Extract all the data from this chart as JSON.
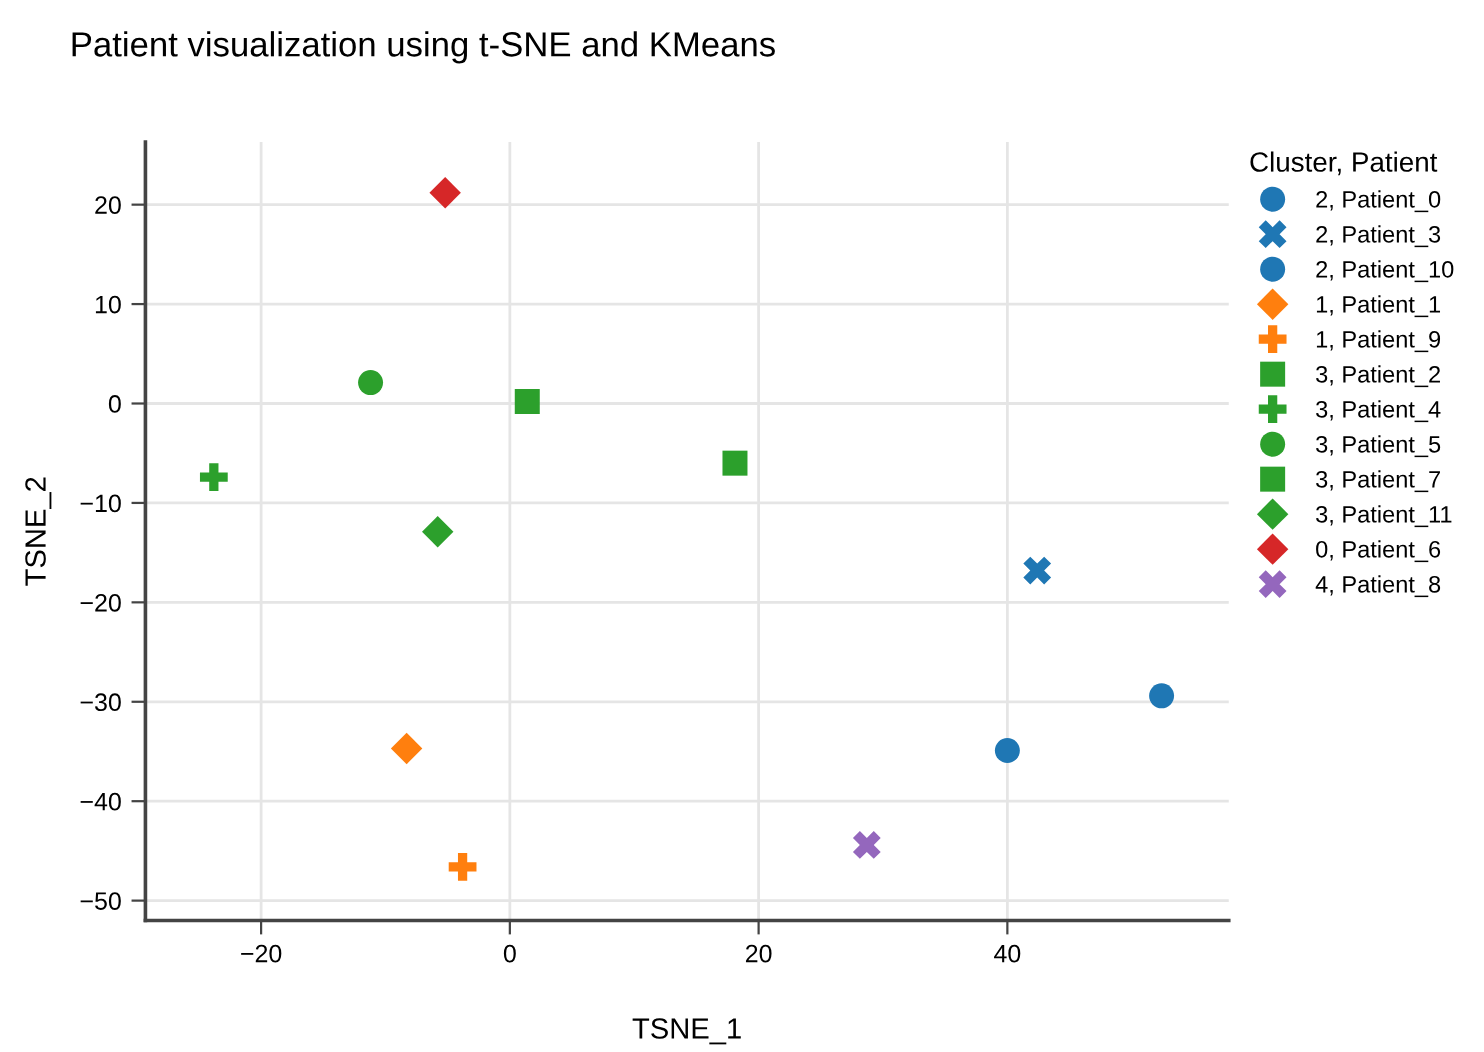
{
  "chart_data": {
    "type": "scatter",
    "title": "Patient visualization using t-SNE and KMeans",
    "xlabel": "TSNE_1",
    "ylabel": "TSNE_2",
    "legend_title": "Cluster, Patient",
    "xlim": [
      -29.3,
      57.8
    ],
    "ylim": [
      -52.0,
      26.3
    ],
    "xticks": [
      {
        "value": -20,
        "label": "−20"
      },
      0,
      20,
      40
    ],
    "yticks": [
      {
        "value": -50,
        "label": "−50"
      },
      {
        "value": -40,
        "label": "−40"
      },
      {
        "value": -30,
        "label": "−30"
      },
      {
        "value": -20,
        "label": "−20"
      },
      {
        "value": -10,
        "label": "−10"
      },
      0,
      10,
      20
    ],
    "grid": true,
    "legend": "top right",
    "series": [
      {
        "name": "2, Patient_0",
        "color": "#1f77b4",
        "marker": "circle",
        "x": [
          52.4
        ],
        "values": [
          -29.4
        ]
      },
      {
        "name": "2, Patient_3",
        "color": "#1f77b4",
        "marker": "x",
        "x": [
          42.4
        ],
        "values": [
          -16.8
        ]
      },
      {
        "name": "2, Patient_10",
        "color": "#1f77b4",
        "marker": "circle",
        "x": [
          40.0
        ],
        "values": [
          -34.9
        ]
      },
      {
        "name": "1, Patient_1",
        "color": "#ff7f0e",
        "marker": "diamond",
        "x": [
          -8.3
        ],
        "values": [
          -34.7
        ]
      },
      {
        "name": "1, Patient_9",
        "color": "#ff7f0e",
        "marker": "cross",
        "x": [
          -3.8
        ],
        "values": [
          -46.6
        ]
      },
      {
        "name": "3, Patient_2",
        "color": "#2ca02c",
        "marker": "square",
        "x": [
          1.4
        ],
        "values": [
          0.2
        ]
      },
      {
        "name": "3, Patient_4",
        "color": "#2ca02c",
        "marker": "cross",
        "x": [
          -23.8
        ],
        "values": [
          -7.4
        ]
      },
      {
        "name": "3, Patient_5",
        "color": "#2ca02c",
        "marker": "circle",
        "x": [
          -11.2
        ],
        "values": [
          2.1
        ]
      },
      {
        "name": "3, Patient_7",
        "color": "#2ca02c",
        "marker": "square",
        "x": [
          18.1
        ],
        "values": [
          -6.0
        ]
      },
      {
        "name": "3, Patient_11",
        "color": "#2ca02c",
        "marker": "diamond",
        "x": [
          -5.8
        ],
        "values": [
          -12.9
        ]
      },
      {
        "name": "0, Patient_6",
        "color": "#d62728",
        "marker": "diamond",
        "x": [
          -5.2
        ],
        "values": [
          21.2
        ]
      },
      {
        "name": "4, Patient_8",
        "color": "#9467bd",
        "marker": "x",
        "x": [
          28.7
        ],
        "values": [
          -44.4
        ]
      }
    ]
  }
}
